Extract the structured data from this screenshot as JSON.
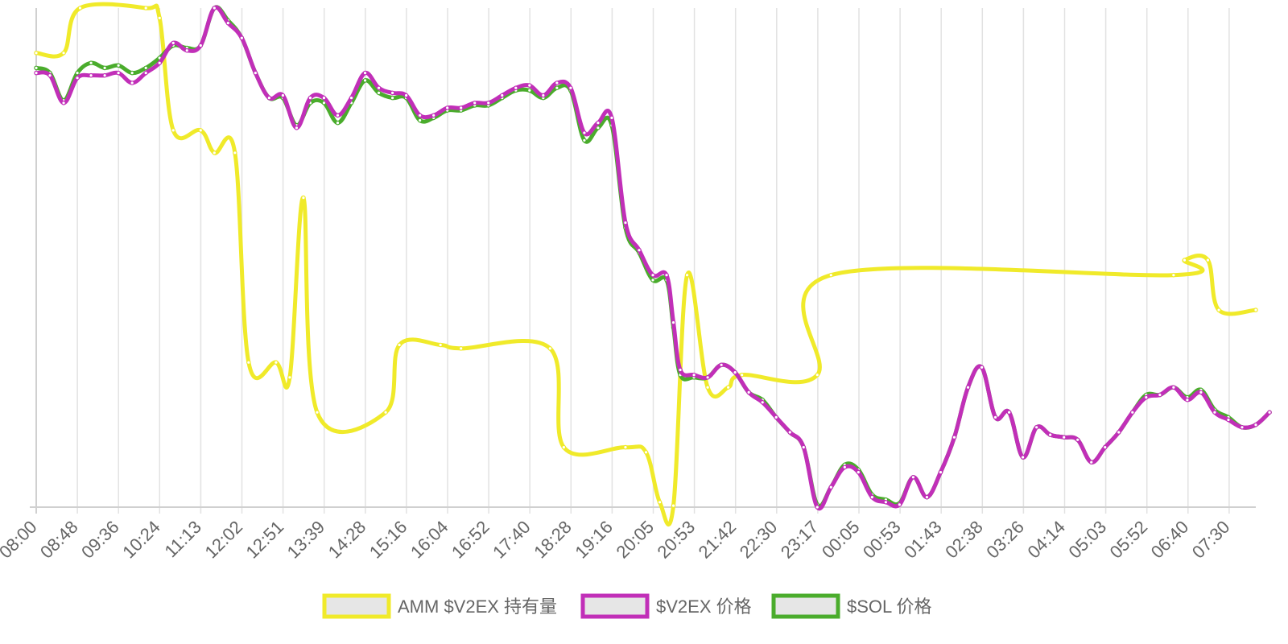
{
  "chart_data": {
    "type": "line",
    "title": "",
    "xlabel": "",
    "ylabel": "",
    "ylim": [
      0,
      100
    ],
    "grid": "vertical",
    "legend_position": "bottom",
    "x_tick_labels": [
      "08:00",
      "08:48",
      "09:36",
      "10:24",
      "11:13",
      "12:02",
      "12:51",
      "13:39",
      "14:28",
      "15:16",
      "16:04",
      "16:52",
      "17:40",
      "18:28",
      "19:16",
      "20:05",
      "20:53",
      "21:42",
      "22:30",
      "23:17",
      "00:05",
      "00:53",
      "01:43",
      "02:38",
      "03:26",
      "04:14",
      "05:03",
      "05:52",
      "06:40",
      "07:30"
    ],
    "series": [
      {
        "name": "AMM $V2EX 持有量",
        "color": "#f0ea2a",
        "points": [
          [
            0,
            91
          ],
          [
            2,
            91
          ],
          [
            3.2,
            100
          ],
          [
            8,
            100
          ],
          [
            9,
            98
          ],
          [
            10,
            75.5
          ],
          [
            12,
            75.5
          ],
          [
            13,
            71
          ],
          [
            14.5,
            71
          ],
          [
            15.5,
            29
          ],
          [
            17.5,
            29
          ],
          [
            18.5,
            26
          ],
          [
            19.5,
            62
          ],
          [
            20.5,
            19
          ],
          [
            25.5,
            19
          ],
          [
            26.5,
            32.5
          ],
          [
            29.5,
            32.5
          ],
          [
            31,
            31.8
          ],
          [
            37.5,
            31.8
          ],
          [
            38.5,
            12
          ],
          [
            43,
            12
          ],
          [
            44.5,
            11
          ],
          [
            45.5,
            1
          ],
          [
            46.5,
            0.3
          ],
          [
            47.5,
            46.5
          ],
          [
            49,
            24
          ],
          [
            50.5,
            24
          ],
          [
            51.5,
            26.5
          ],
          [
            57,
            26.5
          ],
          [
            58,
            46.5
          ],
          [
            83,
            46.5
          ],
          [
            83.8,
            49.5
          ],
          [
            85.5,
            49.5
          ],
          [
            86.3,
            39.5
          ],
          [
            89,
            39.5
          ]
        ]
      },
      {
        "name": "$V2EX 价格",
        "color": "#c12fb8",
        "points": [
          [
            0,
            87
          ],
          [
            1,
            86.5
          ],
          [
            2,
            81
          ],
          [
            3,
            86
          ],
          [
            4,
            86.5
          ],
          [
            5,
            86.5
          ],
          [
            6,
            87
          ],
          [
            7,
            85
          ],
          [
            8,
            87
          ],
          [
            9,
            89
          ],
          [
            10,
            93
          ],
          [
            11,
            91.5
          ],
          [
            12,
            92.5
          ],
          [
            13,
            100
          ],
          [
            14,
            97
          ],
          [
            15,
            94
          ],
          [
            16,
            87
          ],
          [
            17,
            82
          ],
          [
            18,
            82.5
          ],
          [
            19,
            76
          ],
          [
            20,
            82
          ],
          [
            21,
            82
          ],
          [
            22,
            78.5
          ],
          [
            23,
            82
          ],
          [
            24,
            87
          ],
          [
            25,
            84
          ],
          [
            26,
            83
          ],
          [
            27,
            82.5
          ],
          [
            28,
            78.5
          ],
          [
            29,
            78.5
          ],
          [
            30,
            80
          ],
          [
            31,
            80
          ],
          [
            32,
            81
          ],
          [
            33,
            81
          ],
          [
            34,
            82.5
          ],
          [
            35,
            84
          ],
          [
            36,
            84.5
          ],
          [
            37,
            82.5
          ],
          [
            38,
            85
          ],
          [
            39,
            84
          ],
          [
            40,
            75
          ],
          [
            41,
            77
          ],
          [
            42,
            78
          ],
          [
            43,
            57
          ],
          [
            44,
            51.5
          ],
          [
            45,
            46.5
          ],
          [
            46,
            46.5
          ],
          [
            46.5,
            37
          ],
          [
            47,
            27.5
          ],
          [
            48,
            26.5
          ],
          [
            49,
            26
          ],
          [
            50,
            28.5
          ],
          [
            51,
            27
          ],
          [
            52,
            23
          ],
          [
            53,
            21
          ],
          [
            54,
            18
          ],
          [
            55,
            15
          ],
          [
            56,
            12
          ],
          [
            57,
            0
          ],
          [
            58,
            4
          ],
          [
            59,
            8
          ],
          [
            60,
            7
          ],
          [
            61,
            2
          ],
          [
            62,
            1
          ],
          [
            63,
            0.5
          ],
          [
            64,
            6
          ],
          [
            65,
            2
          ],
          [
            66,
            7
          ],
          [
            67,
            14
          ],
          [
            68,
            24
          ],
          [
            69,
            28
          ],
          [
            70,
            18
          ],
          [
            71,
            19
          ],
          [
            72,
            10
          ],
          [
            73,
            16
          ],
          [
            74,
            14.5
          ],
          [
            75,
            14
          ],
          [
            76,
            13.5
          ],
          [
            77,
            9
          ],
          [
            78,
            12
          ],
          [
            79,
            15
          ],
          [
            80,
            19
          ],
          [
            81,
            22
          ],
          [
            82,
            22.5
          ],
          [
            83,
            24
          ],
          [
            84,
            21.5
          ],
          [
            85,
            23
          ],
          [
            86,
            19
          ],
          [
            87,
            17.5
          ],
          [
            88,
            16
          ],
          [
            89,
            16.5
          ],
          [
            90,
            19
          ]
        ]
      },
      {
        "name": "$SOL 价格",
        "color": "#4aac2c",
        "points": [
          [
            0,
            88
          ],
          [
            1,
            87
          ],
          [
            2,
            81.5
          ],
          [
            3,
            87
          ],
          [
            4,
            89
          ],
          [
            5,
            88
          ],
          [
            6,
            88.5
          ],
          [
            7,
            87
          ],
          [
            8,
            88
          ],
          [
            9,
            90
          ],
          [
            10,
            92.5
          ],
          [
            11,
            92
          ],
          [
            12,
            92.5
          ],
          [
            13,
            100
          ],
          [
            14,
            97.5
          ],
          [
            15,
            94
          ],
          [
            16,
            87
          ],
          [
            17,
            82
          ],
          [
            18,
            82
          ],
          [
            19,
            76.5
          ],
          [
            20,
            81
          ],
          [
            21,
            81
          ],
          [
            22,
            77
          ],
          [
            23,
            81
          ],
          [
            24,
            85.5
          ],
          [
            25,
            83
          ],
          [
            26,
            82
          ],
          [
            27,
            82
          ],
          [
            28,
            77.5
          ],
          [
            29,
            78
          ],
          [
            30,
            79.5
          ],
          [
            31,
            79.5
          ],
          [
            32,
            80.5
          ],
          [
            33,
            80.5
          ],
          [
            34,
            82
          ],
          [
            35,
            83.5
          ],
          [
            36,
            83.5
          ],
          [
            37,
            82
          ],
          [
            38,
            84
          ],
          [
            39,
            83.5
          ],
          [
            40,
            73.5
          ],
          [
            41,
            76
          ],
          [
            42,
            76.5
          ],
          [
            43,
            56
          ],
          [
            44,
            51
          ],
          [
            45,
            45.5
          ],
          [
            46,
            45.5
          ],
          [
            46.5,
            36
          ],
          [
            47,
            26.5
          ],
          [
            48,
            26
          ],
          [
            49,
            26
          ],
          [
            50,
            28.5
          ],
          [
            51,
            27
          ],
          [
            52,
            23
          ],
          [
            53,
            21.5
          ],
          [
            54,
            18
          ],
          [
            55,
            15
          ],
          [
            56,
            12
          ],
          [
            57,
            0.5
          ],
          [
            58,
            4
          ],
          [
            59,
            8.5
          ],
          [
            60,
            7.5
          ],
          [
            61,
            2.5
          ],
          [
            62,
            1.5
          ],
          [
            63,
            0.8
          ],
          [
            64,
            6
          ],
          [
            65,
            2
          ],
          [
            66,
            7
          ],
          [
            67,
            14
          ],
          [
            68,
            24
          ],
          [
            69,
            28
          ],
          [
            70,
            18
          ],
          [
            71,
            19
          ],
          [
            72,
            10
          ],
          [
            73,
            16
          ],
          [
            74,
            14.5
          ],
          [
            75,
            14
          ],
          [
            76,
            13.5
          ],
          [
            77,
            9
          ],
          [
            78,
            12
          ],
          [
            79,
            15
          ],
          [
            80,
            19
          ],
          [
            81,
            22.5
          ],
          [
            82,
            22.5
          ],
          [
            83,
            24
          ],
          [
            84,
            22
          ],
          [
            85,
            23.5
          ],
          [
            86,
            19.5
          ],
          [
            87,
            18
          ],
          [
            88,
            16
          ],
          [
            89,
            16.5
          ],
          [
            90,
            19
          ]
        ]
      }
    ]
  }
}
